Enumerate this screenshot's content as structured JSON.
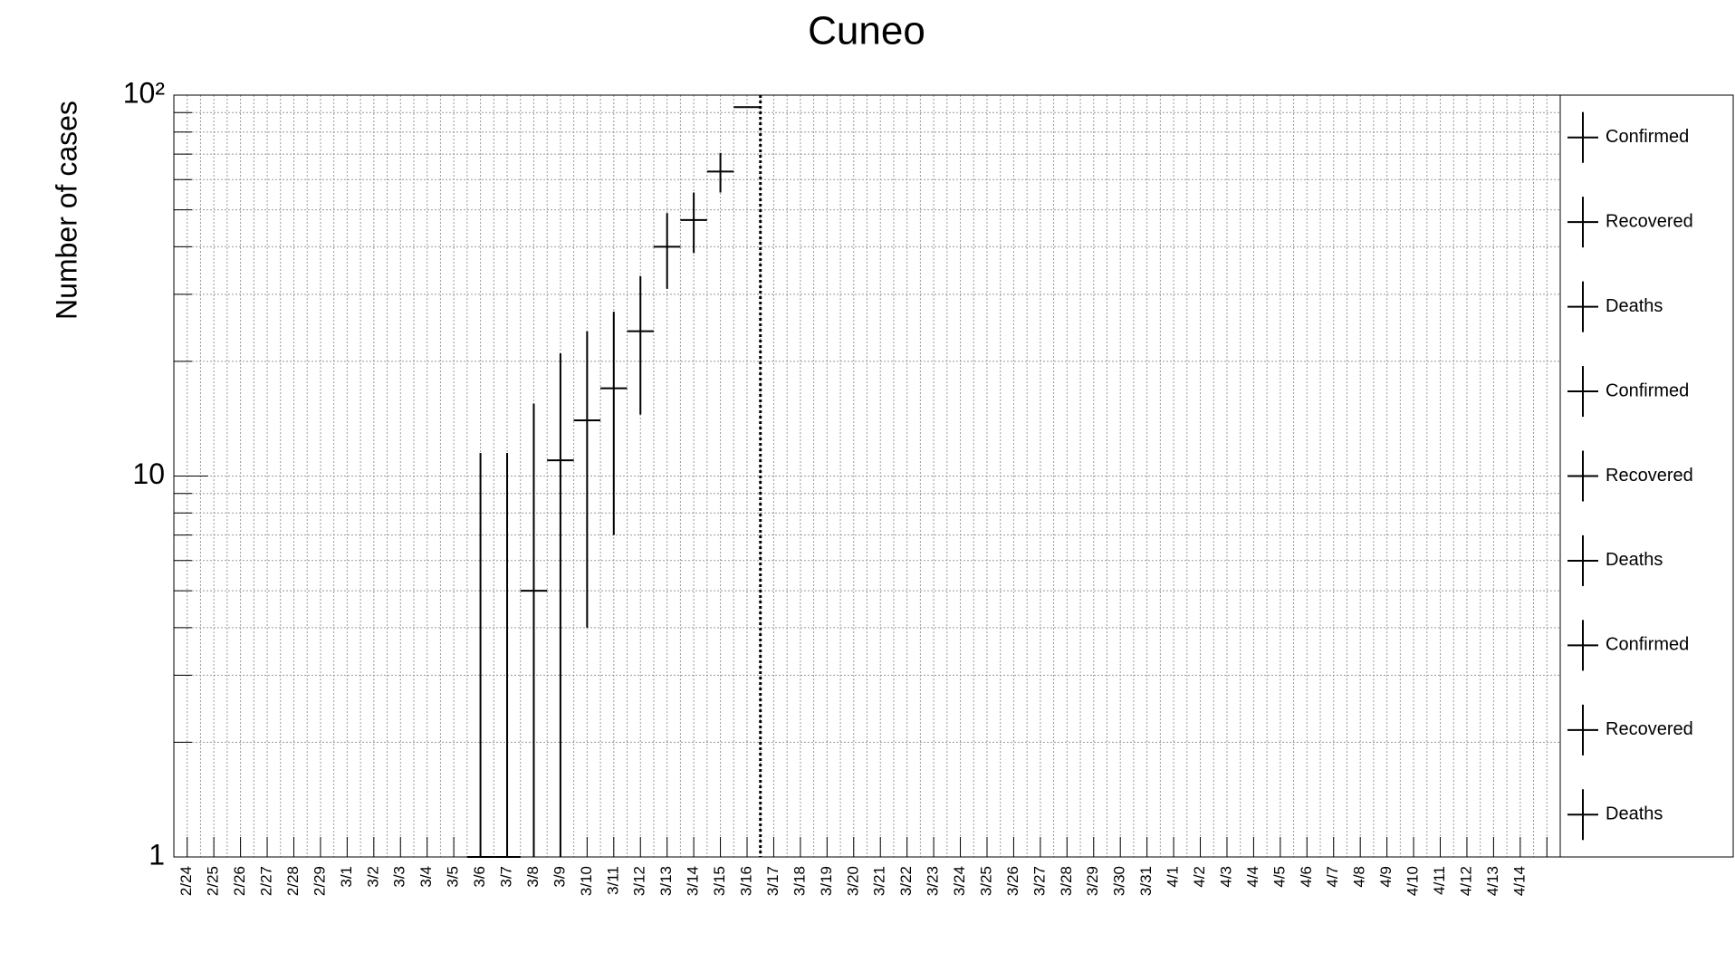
{
  "chart_data": {
    "type": "errorbar",
    "title": "Cuneo",
    "ylabel": "Number of cases",
    "categories": [
      "2/24",
      "2/25",
      "2/26",
      "2/27",
      "2/28",
      "2/29",
      "3/1",
      "3/2",
      "3/3",
      "3/4",
      "3/5",
      "3/6",
      "3/7",
      "3/8",
      "3/9",
      "3/10",
      "3/11",
      "3/12",
      "3/13",
      "3/14",
      "3/15",
      "3/16",
      "3/17",
      "3/18",
      "3/19",
      "3/20",
      "3/21",
      "3/22",
      "3/23",
      "3/24",
      "3/25",
      "3/26",
      "3/27",
      "3/28",
      "3/29",
      "3/30",
      "3/31",
      "4/1",
      "4/2",
      "4/3",
      "4/4",
      "4/5",
      "4/6",
      "4/7",
      "4/8",
      "4/9",
      "4/10",
      "4/11",
      "4/12",
      "4/13",
      "4/14",
      null
    ],
    "series": [
      {
        "name": "Confirmed",
        "color": "#000000",
        "values": [
          null,
          null,
          null,
          null,
          null,
          null,
          null,
          null,
          null,
          null,
          null,
          1,
          1,
          5,
          11,
          14,
          17,
          24,
          40,
          47,
          63,
          93,
          null,
          null,
          null,
          null,
          null,
          null,
          null,
          null,
          null,
          null,
          null,
          null,
          null,
          null,
          null,
          null,
          null,
          null,
          null,
          null,
          null,
          null,
          null,
          null,
          null,
          null,
          null,
          null,
          null,
          null
        ],
        "errors": [
          null,
          null,
          null,
          null,
          null,
          null,
          null,
          null,
          null,
          null,
          null,
          10.5,
          10.5,
          10.5,
          10,
          10,
          10,
          9.5,
          9,
          8.5,
          7.5,
          0,
          null,
          null,
          null,
          null,
          null,
          null,
          null,
          null,
          null,
          null,
          null,
          null,
          null,
          null,
          null,
          null,
          null,
          null,
          null,
          null,
          null,
          null,
          null,
          null,
          null,
          null,
          null,
          null,
          null,
          null
        ]
      }
    ],
    "legend": [
      "Confirmed",
      "Recovered",
      "Deaths",
      "Confirmed",
      "Recovered",
      "Deaths",
      "Confirmed",
      "Recovered",
      "Deaths"
    ],
    "ylim": [
      1,
      100
    ],
    "yscale": "log",
    "yticks": [
      1,
      10,
      {
        "value": 100,
        "label": "10²"
      }
    ],
    "yminor": [
      2,
      3,
      4,
      5,
      6,
      7,
      8,
      9,
      20,
      30,
      40,
      50,
      60,
      70,
      80,
      90
    ],
    "grid": true,
    "legend_position": "right"
  }
}
